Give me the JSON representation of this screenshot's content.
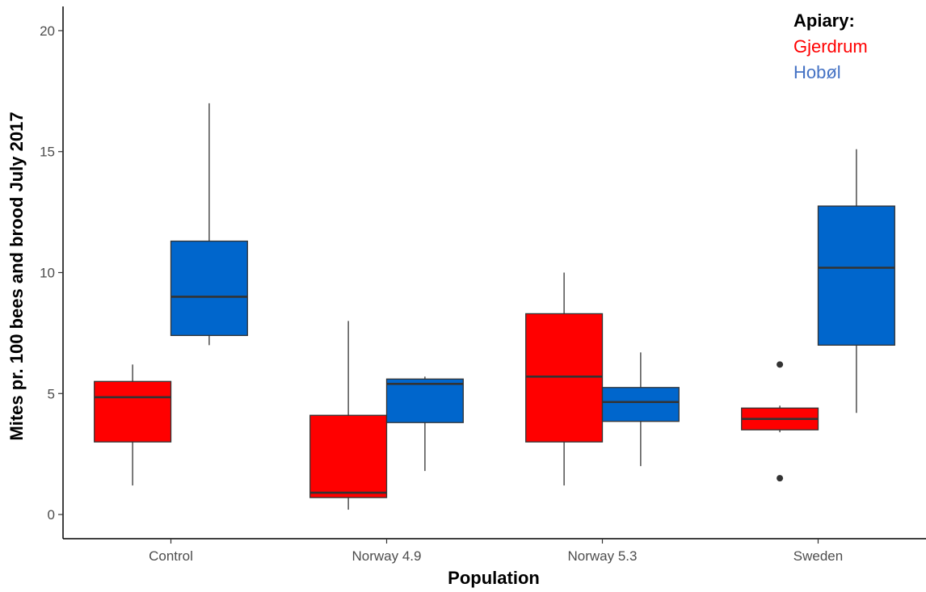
{
  "chart_data": {
    "type": "boxplot",
    "xlabel": "Population",
    "ylabel": "Mites pr. 100 bees and brood July 2017",
    "categories": [
      "Control",
      "Norway 4.9",
      "Norway 5.3",
      "Sweden"
    ],
    "ylim": [
      -1,
      21
    ],
    "yticks": [
      0,
      5,
      10,
      15,
      20
    ],
    "grid": false,
    "legend": {
      "title": "Apiary:",
      "position": "top-right",
      "items": [
        {
          "name": "Gjerdrum",
          "color": "#ff0000"
        },
        {
          "name": "Hobøl",
          "color": "#0066cc"
        }
      ]
    },
    "series": [
      {
        "name": "Gjerdrum",
        "color": "#ff0000",
        "boxes": [
          {
            "category": "Control",
            "whisker_low": 1.2,
            "q1": 3.0,
            "median": 4.85,
            "q3": 5.5,
            "whisker_high": 6.2,
            "outliers": []
          },
          {
            "category": "Norway 4.9",
            "whisker_low": 0.2,
            "q1": 0.7,
            "median": 0.9,
            "q3": 4.1,
            "whisker_high": 8.0,
            "outliers": []
          },
          {
            "category": "Norway 5.3",
            "whisker_low": 1.2,
            "q1": 3.0,
            "median": 5.7,
            "q3": 8.3,
            "whisker_high": 10.0,
            "outliers": []
          },
          {
            "category": "Sweden",
            "whisker_low": 3.4,
            "q1": 3.5,
            "median": 3.95,
            "q3": 4.4,
            "whisker_high": 4.5,
            "outliers": [
              6.2,
              1.5
            ]
          }
        ]
      },
      {
        "name": "Hobøl",
        "color": "#0066cc",
        "boxes": [
          {
            "category": "Control",
            "whisker_low": 7.0,
            "q1": 7.4,
            "median": 9.0,
            "q3": 11.3,
            "whisker_high": 17.0,
            "outliers": []
          },
          {
            "category": "Norway 4.9",
            "whisker_low": 1.8,
            "q1": 3.8,
            "median": 5.4,
            "q3": 5.6,
            "whisker_high": 5.7,
            "outliers": []
          },
          {
            "category": "Norway 5.3",
            "whisker_low": 2.0,
            "q1": 3.85,
            "median": 4.65,
            "q3": 5.25,
            "whisker_high": 6.7,
            "outliers": []
          },
          {
            "category": "Sweden",
            "whisker_low": 4.2,
            "q1": 7.0,
            "median": 10.2,
            "q3": 12.75,
            "whisker_high": 15.1,
            "outliers": []
          }
        ]
      }
    ]
  }
}
